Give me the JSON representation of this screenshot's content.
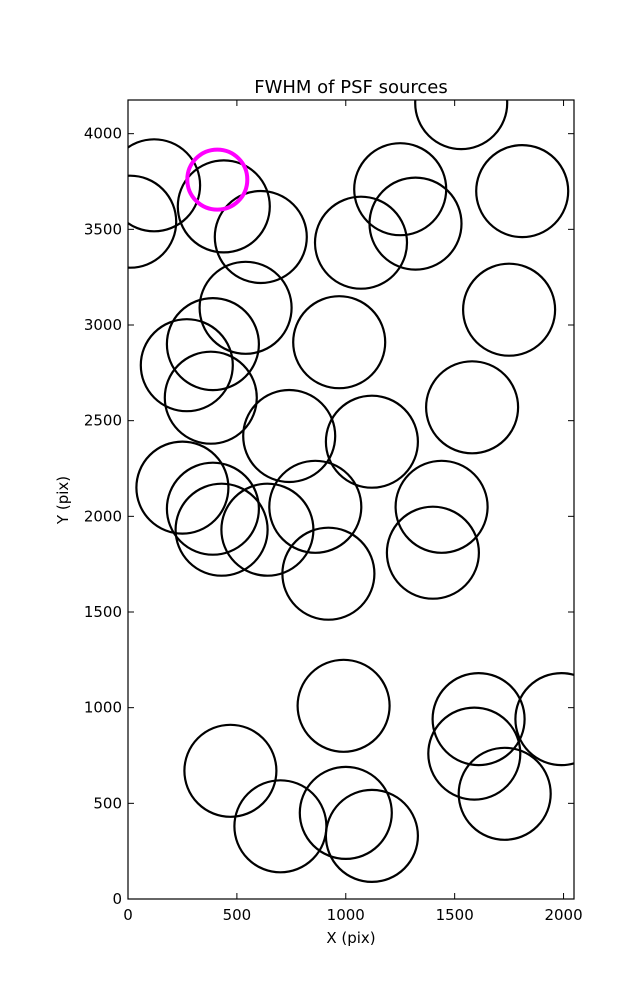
{
  "chart_data": {
    "type": "scatter",
    "title": "FWHM of PSF sources",
    "xlabel": "X (pix)",
    "ylabel": "Y (pix)",
    "xlim": [
      0,
      2048
    ],
    "ylim": [
      0,
      4176
    ],
    "xticks": [
      0,
      500,
      1000,
      1500,
      2000
    ],
    "yticks": [
      0,
      500,
      1000,
      1500,
      2000,
      2500,
      3000,
      3500,
      4000
    ],
    "grid": false,
    "marker": "open circle",
    "series": [
      {
        "color": "#000000",
        "points": [
          {
            "x": 120,
            "y": 3730
          },
          {
            "x": 10,
            "y": 3540
          },
          {
            "x": 440,
            "y": 3620
          },
          {
            "x": 610,
            "y": 3460
          },
          {
            "x": 1250,
            "y": 3710
          },
          {
            "x": 1320,
            "y": 3530
          },
          {
            "x": 1070,
            "y": 3430
          },
          {
            "x": 1810,
            "y": 3700
          },
          {
            "x": 1530,
            "y": 4160
          },
          {
            "x": 540,
            "y": 3090
          },
          {
            "x": 390,
            "y": 2900
          },
          {
            "x": 270,
            "y": 2790
          },
          {
            "x": 380,
            "y": 2620
          },
          {
            "x": 970,
            "y": 2910
          },
          {
            "x": 1750,
            "y": 3080
          },
          {
            "x": 1580,
            "y": 2570
          },
          {
            "x": 740,
            "y": 2420
          },
          {
            "x": 1120,
            "y": 2390
          },
          {
            "x": 250,
            "y": 2150
          },
          {
            "x": 390,
            "y": 2040
          },
          {
            "x": 430,
            "y": 1930
          },
          {
            "x": 640,
            "y": 1930
          },
          {
            "x": 860,
            "y": 2050
          },
          {
            "x": 920,
            "y": 1700
          },
          {
            "x": 1440,
            "y": 2050
          },
          {
            "x": 1400,
            "y": 1810
          },
          {
            "x": 990,
            "y": 1010
          },
          {
            "x": 470,
            "y": 670
          },
          {
            "x": 700,
            "y": 380
          },
          {
            "x": 1000,
            "y": 450
          },
          {
            "x": 1120,
            "y": 330
          },
          {
            "x": 1610,
            "y": 940
          },
          {
            "x": 1590,
            "y": 760
          },
          {
            "x": 1730,
            "y": 550
          },
          {
            "x": 1990,
            "y": 940
          }
        ]
      },
      {
        "color": "#ff00ff",
        "points": [
          {
            "x": 410,
            "y": 3760
          }
        ]
      }
    ]
  }
}
